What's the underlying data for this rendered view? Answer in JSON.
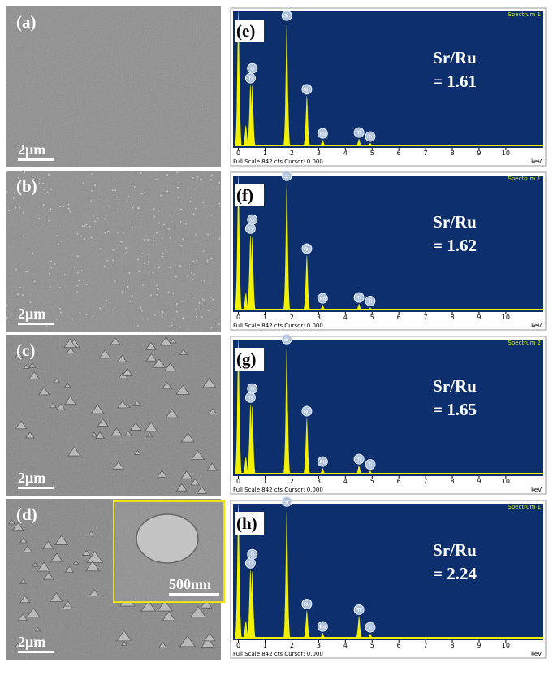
{
  "panels": [
    {
      "label": "(a)",
      "scale_bar": "2μm"
    },
    {
      "label": "(b)",
      "scale_bar": "2μm"
    },
    {
      "label": "(c)",
      "scale_bar": "2μm"
    },
    {
      "label": "(d)",
      "scale_bar": "2μm"
    }
  ],
  "inset": {
    "scale_bar": "500nm"
  },
  "spectra": [
    {
      "label": "(e)",
      "spectrum": "Spectrum 1",
      "ratio_title": "Sr/Ru",
      "ratio": "= 1.61",
      "footer": "Full Scale 842 cts Cursor: 0.000",
      "unit": "keV",
      "xlim": [
        -0.2,
        11.4
      ],
      "xticks": [
        0,
        1,
        2,
        3,
        4,
        5,
        6,
        7,
        8,
        9,
        10
      ],
      "ylim": [
        0,
        842
      ],
      "peaks": [
        {
          "energy": 0.0,
          "height": 842
        },
        {
          "energy": 0.28,
          "height": 130
        },
        {
          "energy": 0.45,
          "height": 385,
          "label": "Ti"
        },
        {
          "energy": 0.52,
          "height": 380,
          "label": "O"
        },
        {
          "energy": 1.81,
          "height": 775,
          "label": "Sr"
        },
        {
          "energy": 2.56,
          "height": 315,
          "label": "Ru"
        },
        {
          "energy": 3.15,
          "height": 40,
          "label": "Ru"
        },
        {
          "energy": 4.51,
          "height": 45,
          "label": "Ti"
        },
        {
          "energy": 4.93,
          "height": 20,
          "label": "Ti"
        }
      ]
    },
    {
      "label": "(f)",
      "spectrum": "Spectrum 1",
      "ratio_title": "Sr/Ru",
      "ratio": "= 1.62",
      "footer": "Full Scale 842 cts Cursor: 0.000",
      "unit": "keV",
      "xlim": [
        -0.2,
        11.4
      ],
      "xticks": [
        0,
        1,
        2,
        3,
        4,
        5,
        6,
        7,
        8,
        9,
        10
      ],
      "ylim": [
        0,
        842
      ],
      "peaks": [
        {
          "energy": 0.0,
          "height": 842
        },
        {
          "energy": 0.28,
          "height": 110
        },
        {
          "energy": 0.45,
          "height": 470,
          "label": "Ti"
        },
        {
          "energy": 0.52,
          "height": 460,
          "label": "O"
        },
        {
          "energy": 1.81,
          "height": 800,
          "label": "Sr"
        },
        {
          "energy": 2.56,
          "height": 345,
          "label": "Ru"
        },
        {
          "energy": 3.15,
          "height": 35,
          "label": "Ru"
        },
        {
          "energy": 4.51,
          "height": 40,
          "label": "Ti"
        },
        {
          "energy": 4.93,
          "height": 18,
          "label": "Ti"
        }
      ]
    },
    {
      "label": "(g)",
      "spectrum": "Spectrum 2",
      "ratio_title": "Sr/Ru",
      "ratio": "= 1.65",
      "footer": "Full Scale 842 cts Cursor: 0.000",
      "unit": "keV",
      "xlim": [
        -0.2,
        11.4
      ],
      "xticks": [
        0,
        1,
        2,
        3,
        4,
        5,
        6,
        7,
        8,
        9,
        10
      ],
      "ylim": [
        0,
        842
      ],
      "peaks": [
        {
          "energy": 0.0,
          "height": 842
        },
        {
          "energy": 0.28,
          "height": 110
        },
        {
          "energy": 0.45,
          "height": 440,
          "label": "Ti"
        },
        {
          "energy": 0.52,
          "height": 430,
          "label": "O"
        },
        {
          "energy": 1.81,
          "height": 805,
          "label": "Sr"
        },
        {
          "energy": 2.56,
          "height": 355,
          "label": "Ru"
        },
        {
          "energy": 3.15,
          "height": 40,
          "label": "Ru"
        },
        {
          "energy": 4.51,
          "height": 55,
          "label": "Ti"
        },
        {
          "energy": 4.93,
          "height": 22,
          "label": "Ti"
        }
      ]
    },
    {
      "label": "(h)",
      "spectrum": "Spectrum 1",
      "ratio_title": "Sr/Ru",
      "ratio": "= 2.24",
      "footer": "Full Scale 842 cts Cursor: 0.000",
      "unit": "keV",
      "xlim": [
        -0.2,
        11.4
      ],
      "xticks": [
        0,
        1,
        2,
        3,
        4,
        5,
        6,
        7,
        8,
        9,
        10
      ],
      "ylim": [
        0,
        842
      ],
      "peaks": [
        {
          "energy": 0.0,
          "height": 842
        },
        {
          "energy": 0.28,
          "height": 110
        },
        {
          "energy": 0.45,
          "height": 430,
          "label": "Ti"
        },
        {
          "energy": 0.52,
          "height": 420,
          "label": "O"
        },
        {
          "energy": 1.81,
          "height": 815,
          "label": "Sr"
        },
        {
          "energy": 2.56,
          "height": 175,
          "label": "Ru"
        },
        {
          "energy": 3.15,
          "height": 35,
          "label": "Ru"
        },
        {
          "energy": 4.51,
          "height": 140,
          "label": "Ti"
        },
        {
          "energy": 4.93,
          "height": 30,
          "label": "Ti"
        }
      ]
    }
  ]
}
